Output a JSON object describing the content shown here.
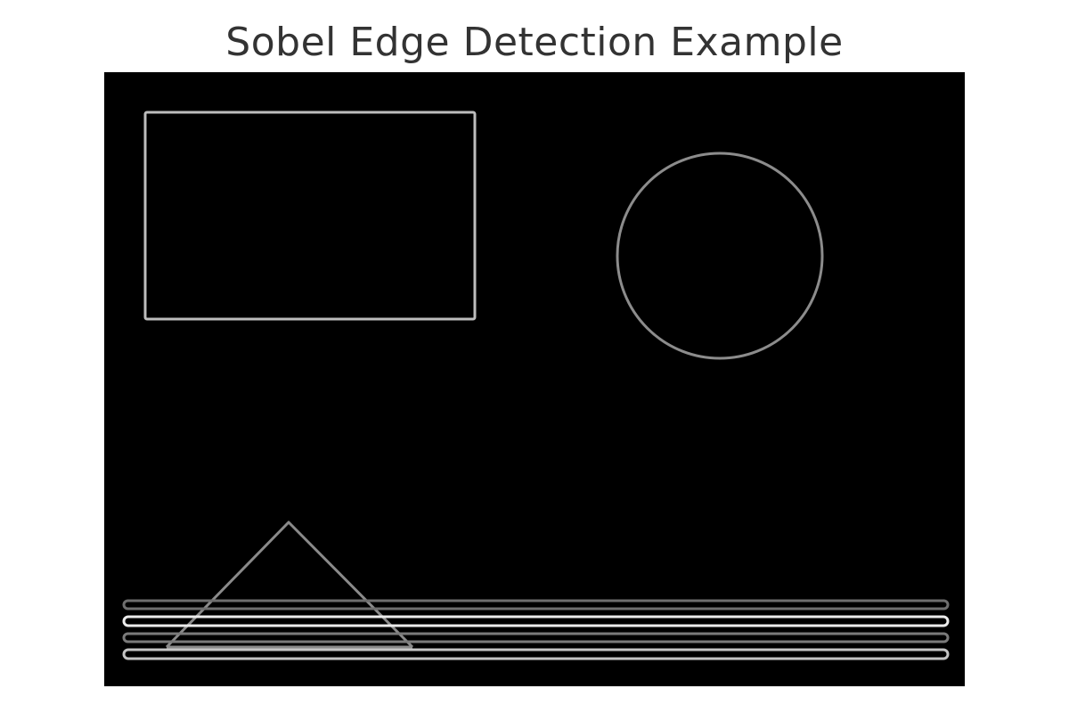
{
  "figure": {
    "title": "Sobel Edge Detection Example"
  },
  "image": {
    "background_color": "#000000",
    "edges": [
      {
        "name": "rectangle-edge",
        "color": "#bdbdbd"
      },
      {
        "name": "circle-edge",
        "color": "#8c8c8c"
      },
      {
        "name": "triangle-edge",
        "color": "#8a8a8a"
      },
      {
        "name": "line-1-edge",
        "color": "#6e6e6e"
      },
      {
        "name": "line-2-edge",
        "color": "#ececec"
      },
      {
        "name": "line-3-edge",
        "color": "#7a7a7a"
      },
      {
        "name": "line-4-edge",
        "color": "#c4c4c4"
      }
    ]
  }
}
